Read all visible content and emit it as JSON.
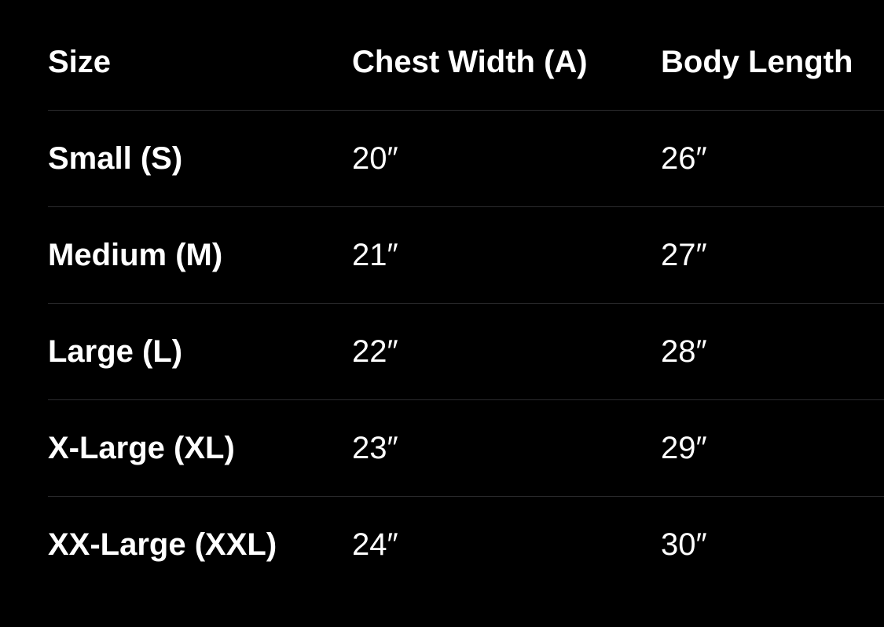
{
  "table": {
    "headers": [
      "Size",
      "Chest Width (A)",
      "Body Length"
    ],
    "rows": [
      [
        "Small (S)",
        "20″",
        "26″"
      ],
      [
        "Medium (M)",
        "21″",
        "27″"
      ],
      [
        "Large (L)",
        "22″",
        "28″"
      ],
      [
        "X-Large (XL)",
        "23″",
        "29″"
      ],
      [
        "XX-Large (XXL)",
        "24″",
        "30″"
      ]
    ]
  },
  "colors": {
    "background": "#000000",
    "text": "#ffffff",
    "divider": "#2c2c2e"
  }
}
